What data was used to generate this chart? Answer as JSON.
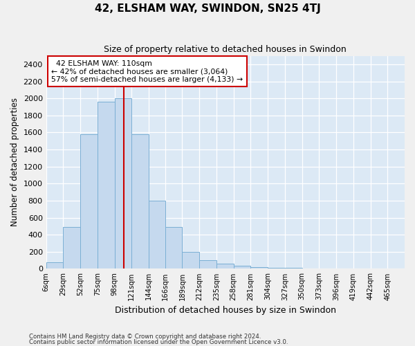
{
  "title": "42, ELSHAM WAY, SWINDON, SN25 4TJ",
  "subtitle": "Size of property relative to detached houses in Swindon",
  "xlabel": "Distribution of detached houses by size in Swindon",
  "ylabel": "Number of detached properties",
  "annotation_line1": "42 ELSHAM WAY: 110sqm",
  "annotation_line2": "← 42% of detached houses are smaller (3,064)",
  "annotation_line3": "57% of semi-detached houses are larger (4,133) →",
  "footer_line1": "Contains HM Land Registry data © Crown copyright and database right 2024.",
  "footer_line2": "Contains public sector information licensed under the Open Government Licence v3.0.",
  "bar_color": "#c5d9ee",
  "bar_edge_color": "#7aafd4",
  "bg_color": "#dce9f5",
  "grid_color": "#ffffff",
  "fig_bg_color": "#f0f0f0",
  "vline_color": "#cc0000",
  "vline_x": 110,
  "categories": [
    "6sqm",
    "29sqm",
    "52sqm",
    "75sqm",
    "98sqm",
    "121sqm",
    "144sqm",
    "166sqm",
    "189sqm",
    "212sqm",
    "235sqm",
    "258sqm",
    "281sqm",
    "304sqm",
    "327sqm",
    "350sqm",
    "373sqm",
    "396sqm",
    "419sqm",
    "442sqm",
    "465sqm"
  ],
  "bin_edges": [
    6,
    29,
    52,
    75,
    98,
    121,
    144,
    166,
    189,
    212,
    235,
    258,
    281,
    304,
    327,
    350,
    373,
    396,
    419,
    442,
    465,
    488
  ],
  "values": [
    80,
    490,
    1580,
    1960,
    2000,
    1580,
    800,
    490,
    195,
    100,
    60,
    35,
    20,
    12,
    8,
    3,
    2,
    1,
    1,
    2,
    1
  ],
  "ylim": [
    0,
    2500
  ],
  "yticks": [
    0,
    200,
    400,
    600,
    800,
    1000,
    1200,
    1400,
    1600,
    1800,
    2000,
    2200,
    2400
  ]
}
